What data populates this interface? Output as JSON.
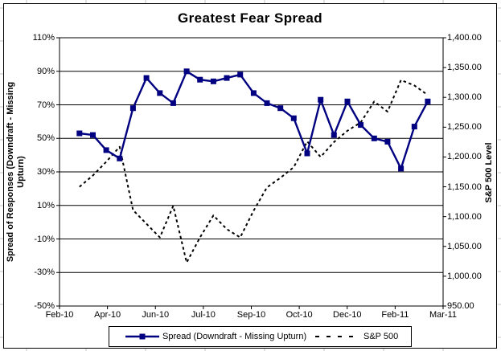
{
  "chart_data": {
    "type": "line",
    "title": "Greatest Fear Spread",
    "legend_position": "bottom",
    "grid": "horizontal",
    "background": "#ffffff",
    "axis_color": "#000000",
    "x_axis": {
      "tick_labels": [
        "Feb-10",
        "Apr-10",
        "Jun-10",
        "Jul-10",
        "Sep-10",
        "Oct-10",
        "Dec-10",
        "Feb-11",
        "Mar-11"
      ]
    },
    "left_axis": {
      "title": "Spread of Responses (Downdraft - Missing Upturn)",
      "min": -50,
      "max": 110,
      "tick_step": 20,
      "unit": "%",
      "tick_labels": [
        "110%",
        "90%",
        "70%",
        "50%",
        "30%",
        "10%",
        "-10%",
        "-30%",
        "-50%"
      ]
    },
    "right_axis": {
      "title": "S&P 500 Level",
      "min": 950,
      "max": 1400,
      "tick_step": 50,
      "tick_labels": [
        "1,400.00",
        "1,350.00",
        "1,300.00",
        "1,250.00",
        "1,200.00",
        "1,150.00",
        "1,100.00",
        "1,050.00",
        "1,000.00",
        "950.00"
      ]
    },
    "series": [
      {
        "name": "Spread (Downdraft - Missing Upturn)",
        "axis": "left_axis",
        "color": "#000080",
        "line_style": "solid",
        "marker": "square",
        "values": [
          53,
          52,
          43,
          38,
          68,
          86,
          77,
          71,
          90,
          85,
          84,
          86,
          88,
          77,
          71,
          68,
          62,
          41,
          73,
          52,
          72,
          58,
          50,
          48,
          32,
          57,
          72
        ]
      },
      {
        "name": "S&P 500",
        "axis": "right_axis",
        "color": "#000000",
        "line_style": "dashed",
        "marker": "none",
        "values": [
          1150,
          1169,
          1192,
          1217,
          1111,
          1088,
          1065,
          1118,
          1023,
          1065,
          1102,
          1079,
          1065,
          1110,
          1149,
          1165,
          1183,
          1226,
          1200,
          1225,
          1244,
          1258,
          1293,
          1276,
          1329,
          1320,
          1304
        ]
      }
    ],
    "series_x_span": {
      "start_frac": 0.052,
      "end_frac": 0.96
    }
  }
}
